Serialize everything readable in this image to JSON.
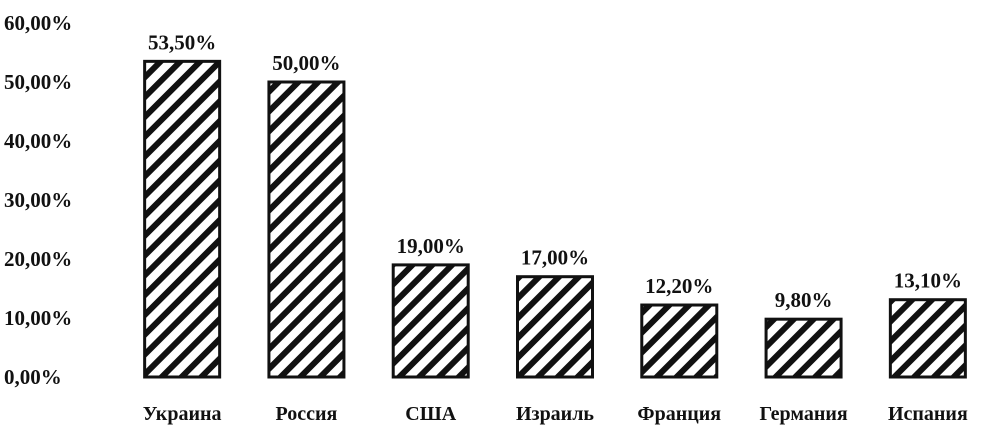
{
  "chart_data": {
    "type": "bar",
    "title": "",
    "xlabel": "",
    "ylabel": "",
    "categories": [
      "Украина",
      "Россия",
      "США",
      "Израиль",
      "Франция",
      "Германия",
      "Испания"
    ],
    "values": [
      53.5,
      50.0,
      19.0,
      17.0,
      12.2,
      9.8,
      13.1
    ],
    "data_labels": [
      "53,50%",
      "50,00%",
      "19,00%",
      "17,00%",
      "12,20%",
      "9,80%",
      "13,10%"
    ],
    "y_ticks": [
      0,
      10,
      20,
      30,
      40,
      50,
      60
    ],
    "y_tick_labels": [
      "0,00%",
      "10,00%",
      "20,00%",
      "30,00%",
      "40,00%",
      "50,00%",
      "60,00%"
    ],
    "ylim": [
      0,
      60
    ],
    "grid": false,
    "legend": "none",
    "bar_fill": "diagonal-hatch",
    "colors": {
      "bar_stroke": "#111111",
      "hatch": "#111111",
      "background": "#ffffff"
    }
  }
}
